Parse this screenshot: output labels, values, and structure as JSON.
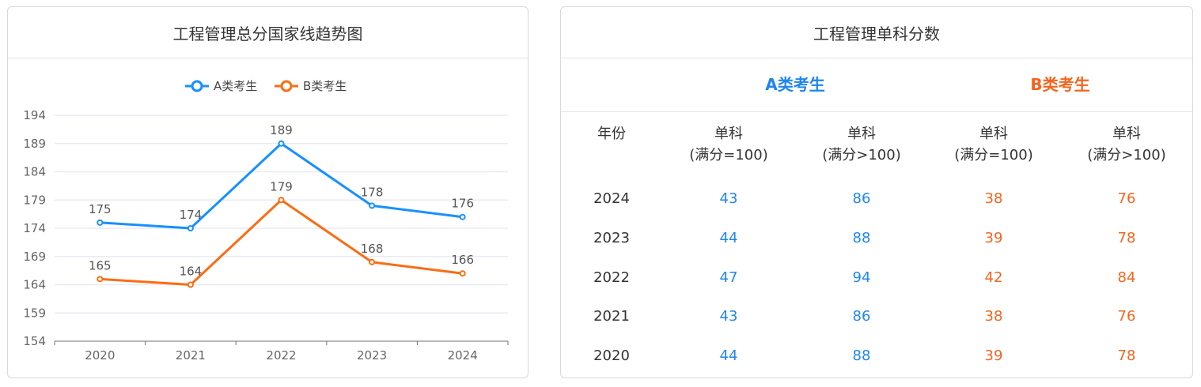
{
  "left_card": {
    "title": "工程管理总分国家线趋势图"
  },
  "chart_data": {
    "type": "line",
    "categories": [
      "2020",
      "2021",
      "2022",
      "2023",
      "2024"
    ],
    "series": [
      {
        "name": "A类考生",
        "color": "#1890ff",
        "values": [
          175,
          174,
          189,
          178,
          176
        ]
      },
      {
        "name": "B类考生",
        "color": "#fa6d14",
        "values": [
          165,
          164,
          179,
          168,
          166
        ]
      }
    ],
    "y_ticks": [
      "154",
      "159",
      "164",
      "169",
      "174",
      "179",
      "184",
      "189",
      "194"
    ],
    "ylim": [
      154,
      194
    ],
    "grid": true,
    "legend_position": "top-center"
  },
  "right_card": {
    "title": "工程管理单科分数",
    "group_a": "A类考生",
    "group_b": "B类考生",
    "colors": {
      "a": "#1f86f0",
      "b": "#f5641e"
    },
    "headers": {
      "year": "年份",
      "col1_line1": "单科",
      "col1_line2": "(满分=100)",
      "col2_line1": "单科",
      "col2_line2": "(满分>100)",
      "col3_line1": "单科",
      "col3_line2": "(满分=100)",
      "col4_line1": "单科",
      "col4_line2": "(满分>100)"
    },
    "rows": [
      {
        "year": "2024",
        "a1": "43",
        "a2": "86",
        "b1": "38",
        "b2": "76"
      },
      {
        "year": "2023",
        "a1": "44",
        "a2": "88",
        "b1": "39",
        "b2": "78"
      },
      {
        "year": "2022",
        "a1": "47",
        "a2": "94",
        "b1": "42",
        "b2": "84"
      },
      {
        "year": "2021",
        "a1": "43",
        "a2": "86",
        "b1": "38",
        "b2": "76"
      },
      {
        "year": "2020",
        "a1": "44",
        "a2": "88",
        "b1": "39",
        "b2": "78"
      }
    ]
  }
}
